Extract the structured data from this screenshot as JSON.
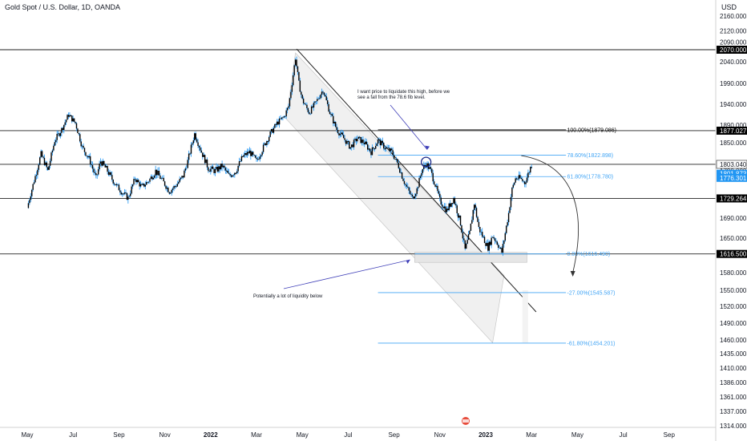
{
  "header": {
    "symbol_title": "Gold Spot / U.S. Dollar, 1D, OANDA",
    "currency": "USD"
  },
  "colors": {
    "candle": "#000000",
    "wick": "#2196f3",
    "fib": "#42a5f5",
    "price_label_bg": "#000000",
    "current_label_bg": "#2196f3",
    "annotation": "#3f3fb8"
  },
  "chart_data": {
    "type": "candlestick",
    "title": "Gold Spot / U.S. Dollar, 1D, OANDA",
    "ylabel": "USD",
    "ylim": [
      1305,
      2180
    ],
    "y_ticks": [
      2160,
      2120,
      2090,
      2040,
      1990,
      1940,
      1890,
      1850,
      1790,
      1730,
      1690,
      1650,
      1580,
      1550,
      1520,
      1490,
      1460,
      1435,
      1410,
      1386,
      1361,
      1337,
      1314
    ],
    "x_ticks": [
      {
        "label": "May",
        "bold": false
      },
      {
        "label": "Jul",
        "bold": false
      },
      {
        "label": "Sep",
        "bold": false
      },
      {
        "label": "Nov",
        "bold": false
      },
      {
        "label": "2022",
        "bold": true
      },
      {
        "label": "Mar",
        "bold": false
      },
      {
        "label": "May",
        "bold": false
      },
      {
        "label": "Jul",
        "bold": false
      },
      {
        "label": "Sep",
        "bold": false
      },
      {
        "label": "Nov",
        "bold": false
      },
      {
        "label": "2023",
        "bold": true
      },
      {
        "label": "Mar",
        "bold": false
      },
      {
        "label": "May",
        "bold": false
      },
      {
        "label": "Jul",
        "bold": false
      },
      {
        "label": "Sep",
        "bold": false
      }
    ],
    "x_tick_months": [
      0,
      2,
      4,
      6,
      8,
      10,
      12,
      14,
      16,
      18,
      20,
      22,
      24,
      26,
      28
    ],
    "price_path": [
      [
        0,
        1710
      ],
      [
        0.3,
        1770
      ],
      [
        0.6,
        1825
      ],
      [
        0.9,
        1790
      ],
      [
        1.2,
        1855
      ],
      [
        1.5,
        1880
      ],
      [
        1.8,
        1915
      ],
      [
        2.1,
        1895
      ],
      [
        2.4,
        1840
      ],
      [
        2.7,
        1815
      ],
      [
        3.0,
        1775
      ],
      [
        3.2,
        1810
      ],
      [
        3.5,
        1790
      ],
      [
        3.8,
        1765
      ],
      [
        4.1,
        1745
      ],
      [
        4.4,
        1730
      ],
      [
        4.7,
        1775
      ],
      [
        5.0,
        1755
      ],
      [
        5.3,
        1770
      ],
      [
        5.6,
        1790
      ],
      [
        5.9,
        1770
      ],
      [
        6.2,
        1745
      ],
      [
        6.5,
        1760
      ],
      [
        6.8,
        1780
      ],
      [
        7.0,
        1810
      ],
      [
        7.3,
        1870
      ],
      [
        7.6,
        1830
      ],
      [
        7.9,
        1795
      ],
      [
        8.2,
        1790
      ],
      [
        8.5,
        1800
      ],
      [
        8.8,
        1780
      ],
      [
        9.1,
        1790
      ],
      [
        9.4,
        1820
      ],
      [
        9.7,
        1830
      ],
      [
        10.0,
        1810
      ],
      [
        10.3,
        1840
      ],
      [
        10.6,
        1870
      ],
      [
        10.9,
        1895
      ],
      [
        11.2,
        1910
      ],
      [
        11.4,
        1935
      ],
      [
        11.6,
        2010
      ],
      [
        11.7,
        2050
      ],
      [
        11.85,
        1990
      ],
      [
        12.0,
        1950
      ],
      [
        12.3,
        1920
      ],
      [
        12.6,
        1945
      ],
      [
        12.9,
        1975
      ],
      [
        13.2,
        1920
      ],
      [
        13.5,
        1880
      ],
      [
        13.8,
        1860
      ],
      [
        14.1,
        1840
      ],
      [
        14.4,
        1860
      ],
      [
        14.7,
        1850
      ],
      [
        15.0,
        1830
      ],
      [
        15.3,
        1855
      ],
      [
        15.6,
        1840
      ],
      [
        15.9,
        1830
      ],
      [
        16.2,
        1800
      ],
      [
        16.5,
        1760
      ],
      [
        16.8,
        1730
      ],
      [
        17.0,
        1750
      ],
      [
        17.2,
        1790
      ],
      [
        17.4,
        1805
      ],
      [
        17.6,
        1790
      ],
      [
        17.8,
        1760
      ],
      [
        18.0,
        1725
      ],
      [
        18.3,
        1705
      ],
      [
        18.6,
        1730
      ],
      [
        18.9,
        1680
      ],
      [
        19.1,
        1625
      ],
      [
        19.3,
        1660
      ],
      [
        19.5,
        1720
      ],
      [
        19.7,
        1670
      ],
      [
        19.9,
        1650
      ],
      [
        20.1,
        1630
      ],
      [
        20.3,
        1655
      ],
      [
        20.5,
        1640
      ],
      [
        20.7,
        1620
      ],
      [
        20.85,
        1660
      ],
      [
        21.0,
        1700
      ],
      [
        21.15,
        1750
      ],
      [
        21.3,
        1775
      ],
      [
        21.5,
        1775
      ],
      [
        21.7,
        1765
      ],
      [
        21.9,
        1790
      ],
      [
        22.0,
        1803
      ]
    ],
    "horizontal_levels": [
      2070.0,
      1877.027,
      1803.04,
      1729.264,
      1616.5
    ],
    "price_labels": [
      {
        "value": 2070.0,
        "label": "2070.000"
      },
      {
        "value": 1877.027,
        "label": "1877.027"
      },
      {
        "value": 1803.04,
        "label": "1803.040"
      },
      {
        "value": 1801.873,
        "label": "1801.873"
      },
      {
        "value": 1776.301,
        "label": "1776.301"
      },
      {
        "value": 1729.264,
        "label": "1729.264"
      },
      {
        "value": 1616.5,
        "label": "1616.500"
      }
    ],
    "fib_levels": [
      {
        "label": "100.00%(1879.086)",
        "value": 1879.086,
        "color": "#000000"
      },
      {
        "label": "78.60%(1822.898)",
        "value": 1822.898,
        "color": "#42a5f5"
      },
      {
        "label": "61.80%(1778.780)",
        "value": 1778.78,
        "color": "#42a5f5"
      },
      {
        "label": "0.00%(1616.490)",
        "value": 1616.49,
        "color": "#42a5f5"
      },
      {
        "label": "-27.00%(1545.587)",
        "value": 1545.587,
        "color": "#42a5f5"
      },
      {
        "label": "-61.80%(1454.201)",
        "value": 1454.201,
        "color": "#42a5f5"
      }
    ],
    "annotations": [
      {
        "text_lines": [
          "I want price to liquidate this high, before we",
          "see a fall from the 78.6 fib level."
        ]
      },
      {
        "text_lines": [
          "Potentially a lot of liquidity below"
        ]
      }
    ]
  }
}
